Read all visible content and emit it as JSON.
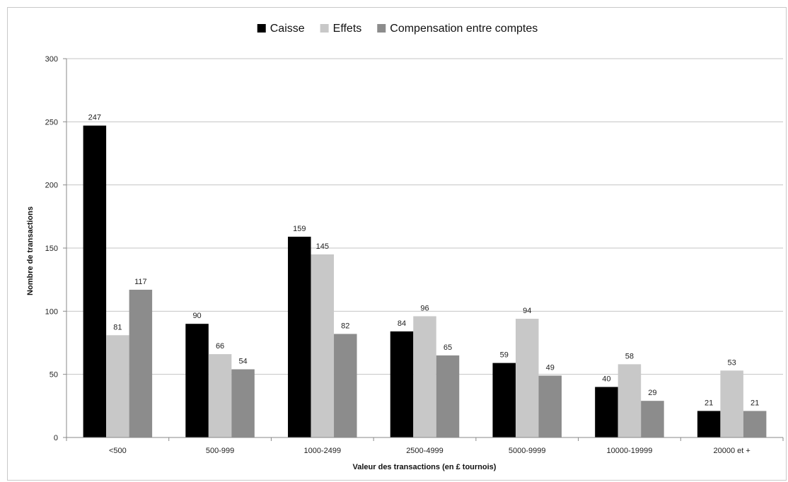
{
  "chart_data": {
    "type": "bar",
    "categories": [
      "<500",
      "500-999",
      "1000-2499",
      "2500-4999",
      "5000-9999",
      "10000-19999",
      "20000 et +"
    ],
    "series": [
      {
        "name": "Caisse",
        "color": "#000000",
        "values": [
          247,
          90,
          159,
          84,
          59,
          40,
          21
        ]
      },
      {
        "name": "Effets",
        "color": "#c8c8c8",
        "values": [
          81,
          66,
          145,
          96,
          94,
          58,
          53
        ]
      },
      {
        "name": "Compensation entre comptes",
        "color": "#8c8c8c",
        "values": [
          117,
          54,
          82,
          65,
          49,
          29,
          21
        ]
      }
    ],
    "title": "",
    "xlabel": "Valeur des transactions (en £ tournois)",
    "ylabel": "Nombre de transactions",
    "ylim": [
      0,
      300
    ],
    "yticks": [
      0,
      50,
      100,
      150,
      200,
      250,
      300
    ],
    "grid": true,
    "legend_position": "top-center",
    "data_labels": true
  }
}
